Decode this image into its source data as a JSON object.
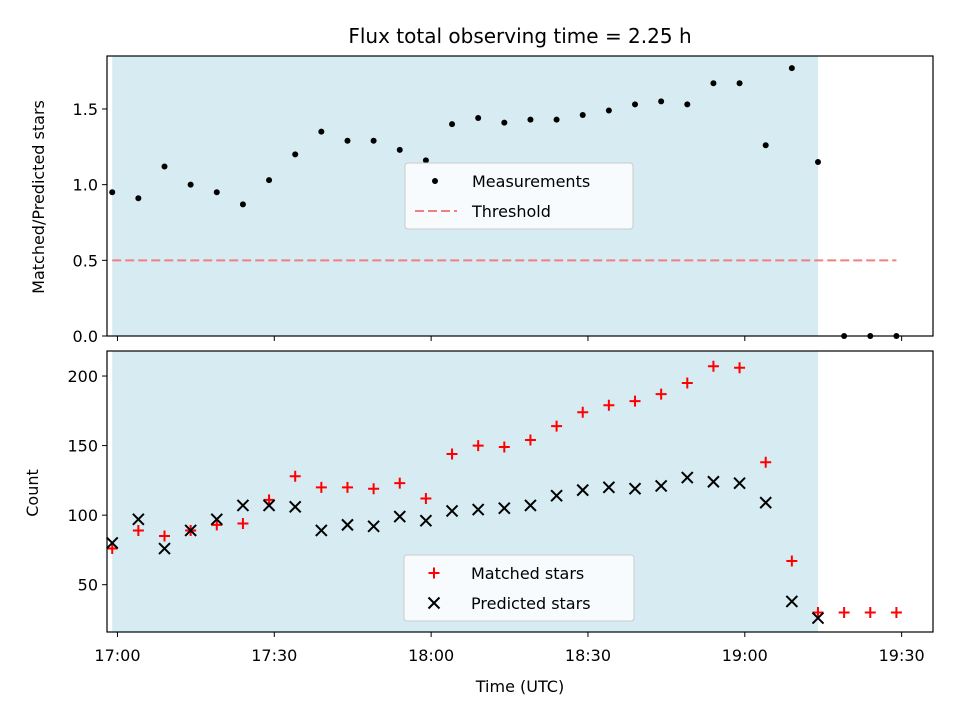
{
  "title": "Flux total observing time = 2.25 h",
  "colors": {
    "shade": "#add8e6",
    "measurement": "#000000",
    "threshold": "#f08080",
    "matched": "#ff0000",
    "predicted": "#000000"
  },
  "chart_data": [
    {
      "type": "scatter",
      "title": "Flux total observing time = 2.25 h",
      "xlabel": "",
      "ylabel": "Matched/Predicted stars",
      "xlim": [
        "16:58",
        "19:36"
      ],
      "ylim": [
        0,
        1.85
      ],
      "yticks": [
        0.0,
        0.5,
        1.0,
        1.5
      ],
      "ytick_labels": [
        "0.0",
        "0.5",
        "1.0",
        "1.5"
      ],
      "xticks": [
        "17:00",
        "17:30",
        "18:00",
        "18:30",
        "19:00",
        "19:30"
      ],
      "shaded_span": [
        "16:59",
        "19:14"
      ],
      "legend": "center",
      "series": [
        {
          "name": "Measurements",
          "marker": "dot",
          "x": [
            "16:59",
            "17:04",
            "17:09",
            "17:14",
            "17:19",
            "17:24",
            "17:29",
            "17:34",
            "17:39",
            "17:44",
            "17:49",
            "17:54",
            "17:59",
            "18:04",
            "18:09",
            "18:14",
            "18:19",
            "18:24",
            "18:29",
            "18:34",
            "18:39",
            "18:44",
            "18:49",
            "18:54",
            "18:59",
            "19:04",
            "19:09",
            "19:14",
            "19:19",
            "19:24",
            "19:29"
          ],
          "y": [
            0.95,
            0.91,
            1.12,
            1.0,
            0.95,
            0.87,
            1.03,
            1.2,
            1.35,
            1.29,
            1.29,
            1.23,
            1.16,
            1.4,
            1.44,
            1.41,
            1.43,
            1.43,
            1.46,
            1.49,
            1.53,
            1.55,
            1.53,
            1.67,
            1.67,
            1.26,
            1.77,
            1.15,
            0,
            0,
            0
          ]
        },
        {
          "name": "Threshold",
          "style": "dashed",
          "x": [
            "16:59",
            "19:29"
          ],
          "y": [
            0.5,
            0.5
          ]
        }
      ]
    },
    {
      "type": "scatter",
      "xlabel": "Time (UTC)",
      "ylabel": "Count",
      "xlim": [
        "16:58",
        "19:36"
      ],
      "ylim": [
        16,
        218
      ],
      "yticks": [
        50,
        100,
        150,
        200
      ],
      "xticks": [
        "17:00",
        "17:30",
        "18:00",
        "18:30",
        "19:00",
        "19:30"
      ],
      "shaded_span": [
        "16:59",
        "19:14"
      ],
      "legend": "lower center",
      "series": [
        {
          "name": "Matched stars",
          "marker": "plus",
          "x": [
            "16:59",
            "17:04",
            "17:09",
            "17:14",
            "17:19",
            "17:24",
            "17:29",
            "17:34",
            "17:39",
            "17:44",
            "17:49",
            "17:54",
            "17:59",
            "18:04",
            "18:09",
            "18:14",
            "18:19",
            "18:24",
            "18:29",
            "18:34",
            "18:39",
            "18:44",
            "18:49",
            "18:54",
            "18:59",
            "19:04",
            "19:09",
            "19:14",
            "19:19",
            "19:24",
            "19:29"
          ],
          "y": [
            76,
            89,
            85,
            89,
            93,
            94,
            111,
            128,
            120,
            120,
            119,
            123,
            112,
            144,
            150,
            149,
            154,
            164,
            174,
            179,
            182,
            187,
            195,
            207,
            206,
            138,
            67,
            30,
            30,
            30,
            30
          ]
        },
        {
          "name": "Predicted stars",
          "marker": "x",
          "x": [
            "16:59",
            "17:04",
            "17:09",
            "17:14",
            "17:19",
            "17:24",
            "17:29",
            "17:34",
            "17:39",
            "17:44",
            "17:49",
            "17:54",
            "17:59",
            "18:04",
            "18:09",
            "18:14",
            "18:19",
            "18:24",
            "18:29",
            "18:34",
            "18:39",
            "18:44",
            "18:49",
            "18:54",
            "18:59",
            "19:04",
            "19:09",
            "19:14"
          ],
          "y": [
            80,
            97,
            76,
            89,
            97,
            107,
            107,
            106,
            89,
            93,
            92,
            99,
            96,
            103,
            104,
            105,
            107,
            114,
            118,
            120,
            119,
            121,
            127,
            124,
            123,
            109,
            38,
            26
          ]
        }
      ]
    }
  ]
}
